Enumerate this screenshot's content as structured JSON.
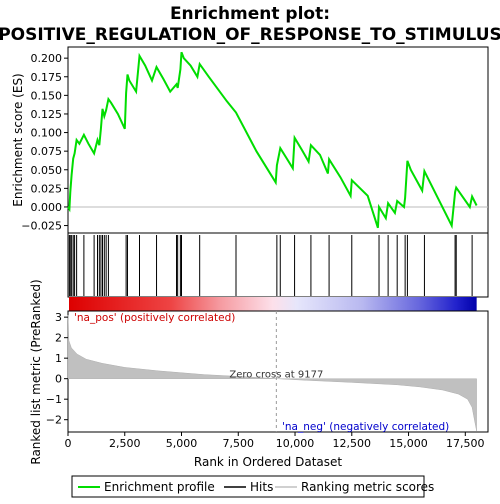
{
  "chart_data": {
    "type": "line",
    "title_line1": "Enrichment plot:",
    "title_line2": "POSITIVE_REGULATION_OF_RESPONSE_TO_STIMULUS",
    "top_panel": {
      "ylabel": "Enrichment score (ES)",
      "ylim": [
        -0.035,
        0.215
      ],
      "yticks": [
        -0.025,
        0.0,
        0.025,
        0.05,
        0.075,
        0.1,
        0.125,
        0.15,
        0.175,
        0.2
      ],
      "ytick_labels": [
        "−0.025",
        "0.000",
        "0.025",
        "0.050",
        "0.075",
        "0.100",
        "0.125",
        "0.150",
        "0.175",
        "0.200"
      ],
      "series": [
        {
          "name": "Enrichment profile",
          "color": "#00dd00",
          "x": [
            0,
            60,
            100,
            160,
            230,
            290,
            380,
            500,
            700,
            900,
            1150,
            1300,
            1380,
            1450,
            1520,
            1600,
            1680,
            1780,
            1900,
            2200,
            2500,
            2560,
            2620,
            2700,
            3000,
            3150,
            3400,
            3700,
            3900,
            4200,
            4500,
            4780,
            4830,
            4950,
            5000,
            5100,
            5400,
            5700,
            5800,
            6200,
            7000,
            7400,
            8300,
            9150,
            9200,
            9350,
            9600,
            9900,
            9980,
            10300,
            10600,
            10700,
            11100,
            11450,
            11500,
            12000,
            12450,
            12500,
            13200,
            13650,
            13700,
            14000,
            14100,
            14400,
            14500,
            14800,
            14850,
            14950,
            15100,
            15600,
            15700,
            16900,
            17050,
            17100,
            17700,
            17800,
            18000
          ],
          "y": [
            0.0,
            -0.003,
            0.02,
            0.043,
            0.065,
            0.072,
            0.09,
            0.085,
            0.097,
            0.085,
            0.072,
            0.09,
            0.083,
            0.105,
            0.132,
            0.122,
            0.13,
            0.145,
            0.14,
            0.125,
            0.105,
            0.153,
            0.178,
            0.17,
            0.155,
            0.203,
            0.19,
            0.17,
            0.188,
            0.172,
            0.155,
            0.165,
            0.16,
            0.185,
            0.208,
            0.2,
            0.19,
            0.175,
            0.192,
            0.175,
            0.142,
            0.127,
            0.075,
            0.033,
            0.056,
            0.079,
            0.067,
            0.052,
            0.093,
            0.077,
            0.061,
            0.083,
            0.07,
            0.045,
            0.064,
            0.04,
            0.015,
            0.036,
            0.015,
            -0.028,
            0.0,
            -0.015,
            0.005,
            -0.008,
            0.008,
            0.0,
            0.012,
            0.062,
            0.05,
            0.022,
            0.048,
            -0.025,
            0.02,
            0.026,
            0.0,
            0.014,
            0.002
          ]
        }
      ]
    },
    "hits": {
      "name": "Hits",
      "x": [
        60,
        100,
        160,
        230,
        290,
        380,
        700,
        1150,
        1300,
        1380,
        1450,
        1520,
        1600,
        1680,
        1780,
        2560,
        2620,
        3150,
        3900,
        4780,
        4830,
        4950,
        5000,
        5800,
        7400,
        9200,
        9350,
        9980,
        10700,
        11500,
        12500,
        13700,
        14100,
        14500,
        14850,
        14950,
        15700,
        17050,
        17100,
        17800
      ]
    },
    "bottom_panel": {
      "ylabel": "Ranked list metric (PreRanked)",
      "ylim": [
        -2.6,
        3.3
      ],
      "yticks": [
        3,
        2,
        1,
        0,
        -1,
        -2
      ],
      "ytick_labels": [
        "3",
        "2",
        "1",
        "0",
        "−1",
        "−2"
      ],
      "series_name": "Ranking metric scores",
      "metric_profile": {
        "x": [
          0,
          40,
          150,
          400,
          800,
          1500,
          2500,
          4000,
          6000,
          8000,
          9177,
          10500,
          12500,
          14500,
          15500,
          16500,
          17200,
          17600,
          17800,
          17900,
          18000
        ],
        "y": [
          3.1,
          1.85,
          1.5,
          1.2,
          0.95,
          0.75,
          0.55,
          0.38,
          0.2,
          0.08,
          0.0,
          -0.08,
          -0.18,
          -0.3,
          -0.4,
          -0.55,
          -0.75,
          -1.0,
          -1.4,
          -2.0,
          -2.55
        ]
      },
      "zero_cross_label": "Zero cross at 9177",
      "zero_cross_x": 9177,
      "pos_label": "'na_pos' (positively correlated)",
      "neg_label": "'na_neg' (negatively correlated)"
    },
    "xaxis": {
      "label": "Rank in Ordered Dataset",
      "xlim": [
        0,
        18500
      ],
      "xmax_data": 18000,
      "xticks": [
        0,
        2500,
        5000,
        7500,
        10000,
        12500,
        15000,
        17500
      ],
      "xtick_labels": [
        "0",
        "2,500",
        "5,000",
        "7,500",
        "10,000",
        "12,500",
        "15,000",
        "17,500"
      ]
    },
    "legend": {
      "placement": "bottom",
      "entries": [
        {
          "label": "Enrichment profile",
          "color": "#00dd00"
        },
        {
          "label": "Hits",
          "color": "#000000"
        },
        {
          "label": "Ranking metric scores",
          "color": "#c0c0c0"
        }
      ]
    },
    "colors": {
      "profile": "#00dd00",
      "hit": "#000000",
      "metric_fill": "#c0c0c0",
      "pos_text": "#cc0000",
      "neg_text": "#0000cc"
    }
  }
}
